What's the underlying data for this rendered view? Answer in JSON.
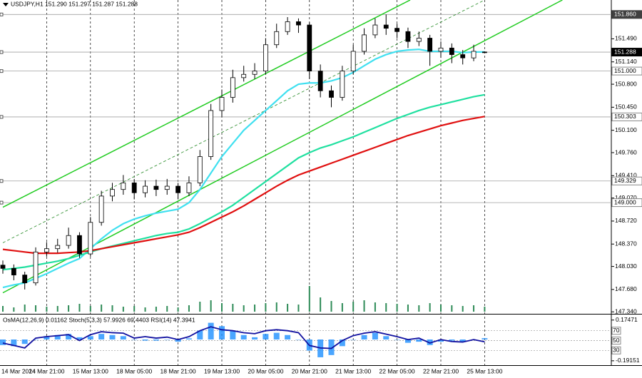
{
  "chart_data": {
    "type": "candlestick",
    "header": "USDJPY,H1  151.290 151.297 151.287 151.288",
    "indicator_label": "OsMA(12,26,9) 0.01162 Stoch(5,3,3) 57.9926 69.4403 RSI(14) 47.3941",
    "xticks": [
      {
        "value": 0,
        "label": "14 Mar 2024"
      },
      {
        "value": 4,
        "label": "14 Mar 21:00"
      },
      {
        "value": 8,
        "label": "15 Mar 13:00"
      },
      {
        "value": 12,
        "label": "18 Mar 05:00"
      },
      {
        "value": 16,
        "label": "18 Mar 21:00"
      },
      {
        "value": 20,
        "label": "19 Mar 13:00"
      },
      {
        "value": 24,
        "label": "20 Mar 05:00"
      },
      {
        "value": 28,
        "label": "20 Mar 21:00"
      },
      {
        "value": 32,
        "label": "21 Mar 13:00"
      },
      {
        "value": 36,
        "label": "22 Mar 05:00"
      },
      {
        "value": 40,
        "label": "22 Mar 21:00"
      },
      {
        "value": 44,
        "label": "25 Mar 13:00"
      }
    ],
    "open": [
      148.05,
      148.0,
      147.9,
      147.78,
      148.25,
      148.3,
      148.35,
      148.5,
      148.22,
      148.7,
      149.1,
      149.2,
      149.3,
      149.15,
      149.25,
      149.2,
      149.25,
      149.15,
      149.3,
      149.7,
      150.4,
      150.6,
      150.9,
      150.95,
      151.0,
      151.4,
      151.6,
      151.75,
      151.7,
      151.0,
      150.7,
      150.6,
      151.0,
      151.3,
      151.55,
      151.7,
      151.65,
      151.6,
      151.45,
      151.5,
      151.3,
      151.35,
      151.25,
      151.2,
      151.29
    ],
    "high": [
      148.12,
      148.06,
      147.95,
      148.32,
      148.4,
      148.45,
      148.62,
      148.55,
      148.78,
      149.18,
      149.3,
      149.42,
      149.36,
      149.34,
      149.35,
      149.36,
      149.3,
      149.4,
      149.8,
      150.5,
      150.72,
      151.02,
      151.08,
      151.12,
      151.5,
      151.72,
      151.82,
      151.8,
      151.74,
      151.1,
      150.78,
      151.08,
      151.4,
      151.65,
      151.8,
      151.86,
      151.72,
      151.66,
      151.6,
      151.55,
      151.45,
      151.42,
      151.32,
      151.4,
      151.297
    ],
    "low": [
      147.92,
      147.82,
      147.68,
      147.74,
      148.18,
      148.24,
      148.3,
      148.16,
      148.18,
      148.65,
      149.02,
      149.12,
      149.05,
      149.08,
      149.1,
      149.12,
      149.05,
      149.1,
      149.25,
      149.65,
      150.3,
      150.52,
      150.84,
      150.88,
      150.95,
      151.35,
      151.55,
      151.58,
      150.88,
      150.6,
      150.45,
      150.55,
      150.95,
      151.25,
      151.5,
      151.55,
      151.5,
      151.35,
      151.38,
      151.08,
      151.2,
      151.12,
      151.1,
      151.15,
      151.287
    ],
    "close": [
      148.0,
      147.9,
      147.78,
      148.25,
      148.3,
      148.35,
      148.5,
      148.22,
      148.7,
      149.1,
      149.2,
      149.3,
      149.15,
      149.25,
      149.2,
      149.25,
      149.15,
      149.3,
      149.7,
      150.4,
      150.6,
      150.9,
      150.95,
      151.0,
      151.4,
      151.6,
      151.75,
      151.7,
      151.0,
      150.7,
      150.6,
      151.0,
      151.3,
      151.55,
      151.7,
      151.65,
      151.6,
      151.45,
      151.5,
      151.3,
      151.35,
      151.25,
      151.2,
      151.3,
      151.288
    ],
    "volume": [
      8,
      6,
      10,
      9,
      7,
      8,
      9,
      11,
      8,
      10,
      9,
      7,
      8,
      6,
      7,
      8,
      6,
      9,
      14,
      16,
      12,
      11,
      9,
      10,
      12,
      13,
      11,
      10,
      36,
      20,
      15,
      12,
      14,
      16,
      13,
      12,
      11,
      10,
      9,
      12,
      10,
      9,
      8,
      9,
      7
    ],
    "bull_color": "#ffffff",
    "bear_color": "#000000",
    "volume_color": "#2e8b57",
    "moving_averages": [
      {
        "color": "#40e0f0",
        "values": [
          147.71,
          147.75,
          147.78,
          147.85,
          147.92,
          148.0,
          148.08,
          148.15,
          148.3,
          148.45,
          148.58,
          148.68,
          148.75,
          148.8,
          148.84,
          148.87,
          148.9,
          149.0,
          149.2,
          149.45,
          149.7,
          149.9,
          150.1,
          150.25,
          150.4,
          150.55,
          150.7,
          150.8,
          150.82,
          150.82,
          150.85,
          150.9,
          150.98,
          151.08,
          151.18,
          151.25,
          151.3,
          151.32,
          151.33,
          151.3,
          151.3,
          151.3,
          151.28,
          151.29,
          151.29
        ]
      },
      {
        "color": "#20e0a0",
        "values": [
          147.98,
          148.0,
          148.02,
          148.05,
          148.08,
          148.11,
          148.15,
          148.2,
          148.25,
          148.3,
          148.34,
          148.38,
          148.42,
          148.46,
          148.5,
          148.53,
          148.55,
          148.6,
          148.68,
          148.77,
          148.86,
          148.96,
          149.08,
          149.2,
          149.32,
          149.44,
          149.56,
          149.68,
          149.76,
          149.83,
          149.88,
          149.94,
          150.0,
          150.07,
          150.14,
          150.21,
          150.28,
          150.34,
          150.4,
          150.45,
          150.49,
          150.53,
          150.57,
          150.61,
          150.64
        ]
      },
      {
        "color": "#e01010",
        "values": [
          148.29,
          148.27,
          148.25,
          148.23,
          148.23,
          148.23,
          148.24,
          148.25,
          148.27,
          148.3,
          148.33,
          148.36,
          148.39,
          148.42,
          148.45,
          148.48,
          148.51,
          148.55,
          148.62,
          148.7,
          148.78,
          148.86,
          148.95,
          149.05,
          149.15,
          149.25,
          149.34,
          149.42,
          149.48,
          149.54,
          149.6,
          149.66,
          149.72,
          149.78,
          149.84,
          149.9,
          149.96,
          150.02,
          150.07,
          150.12,
          150.17,
          150.21,
          150.25,
          150.28,
          150.31
        ]
      }
    ],
    "trendlines": [
      {
        "color": "#22cc22",
        "dashed": false,
        "from": [
          0,
          148.93
        ],
        "to": [
          37.2,
          152.08
        ]
      },
      {
        "color": "#228822",
        "dashed": true,
        "from": [
          0,
          148.39
        ],
        "to": [
          44,
          152.08
        ]
      },
      {
        "color": "#22cc22",
        "dashed": false,
        "from": [
          0,
          147.63
        ],
        "to": [
          51.1,
          152.08
        ]
      }
    ],
    "levels": [
      {
        "value": 151.86,
        "label": "151.860",
        "box": "#404040"
      },
      {
        "value": 151.288,
        "label": "151.288",
        "box": "#000000"
      },
      {
        "value": 151.0,
        "label": "151.000",
        "box": "#d8d8d8"
      },
      {
        "value": 150.303,
        "label": "150.303",
        "box": "#d8d8d8"
      },
      {
        "value": 149.329,
        "label": "149.329",
        "box": "#d8d8d8"
      },
      {
        "value": 149.0,
        "label": "149.000",
        "box": "#d8d8d8"
      }
    ],
    "ylim": [
      147.31,
      152.08
    ],
    "yticks": [
      {
        "value": 151.49,
        "label": "151.490"
      },
      {
        "value": 151.14,
        "label": "151.140"
      },
      {
        "value": 150.8,
        "label": "150.800"
      },
      {
        "value": 150.45,
        "label": "150.450"
      },
      {
        "value": 150.1,
        "label": "150.100"
      },
      {
        "value": 149.76,
        "label": "149.760"
      },
      {
        "value": 149.41,
        "label": "149.410"
      },
      {
        "value": 149.07,
        "label": "149.070"
      },
      {
        "value": 148.72,
        "label": "148.720"
      },
      {
        "value": 148.37,
        "label": "148.370"
      },
      {
        "value": 148.03,
        "label": "148.030"
      },
      {
        "value": 147.68,
        "label": "147.680"
      },
      {
        "value": 147.34,
        "label": "147.340"
      }
    ],
    "osma": {
      "color": "#1e90ff",
      "values": [
        -0.05,
        -0.06,
        -0.04,
        0.0,
        0.03,
        0.04,
        0.05,
        0.02,
        0.03,
        0.05,
        0.04,
        0.03,
        0.0,
        -0.01,
        -0.01,
        0.0,
        -0.02,
        0.01,
        0.08,
        0.15,
        0.12,
        0.08,
        0.04,
        0.02,
        0.05,
        0.06,
        0.04,
        0.0,
        -0.1,
        -0.16,
        -0.14,
        -0.06,
        0.0,
        0.04,
        0.06,
        0.03,
        0.0,
        -0.03,
        -0.02,
        -0.05,
        -0.02,
        -0.01,
        -0.02,
        0.0,
        0.01162
      ],
      "ylim": [
        -0.2308,
        0.2115
      ],
      "yticks": [
        0.17471,
        -0.19151
      ]
    },
    "rsi": {
      "color": "#1010a0",
      "values": [
        45,
        40,
        35,
        55,
        58,
        60,
        62,
        50,
        62,
        68,
        66,
        65,
        55,
        58,
        55,
        57,
        52,
        58,
        70,
        78,
        72,
        70,
        66,
        64,
        70,
        72,
        70,
        66,
        40,
        35,
        34,
        50,
        60,
        65,
        68,
        63,
        58,
        52,
        55,
        45,
        52,
        48,
        47,
        52,
        47.3941
      ],
      "ylim": [
        0,
        100
      ],
      "yticks": [
        70,
        50,
        30
      ]
    }
  }
}
